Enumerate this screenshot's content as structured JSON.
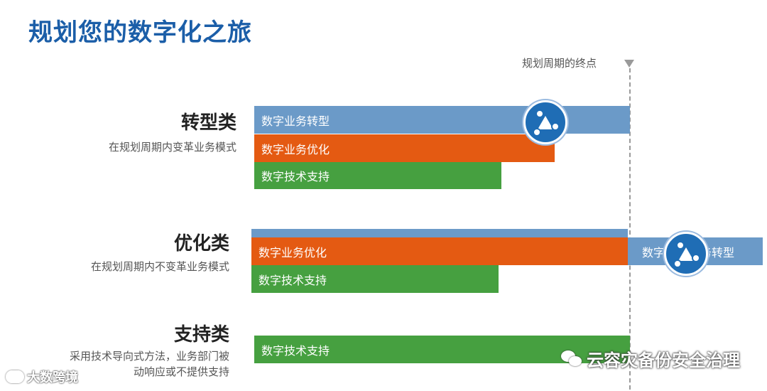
{
  "title": "规划您的数字化之旅",
  "horizon_label": "规划周期的终点",
  "groups": {
    "transform": {
      "title": "转型类",
      "desc": "在规划周期内变革业务模式",
      "bars": [
        "数字业务转型",
        "数字业务优化",
        "数字技术支持"
      ]
    },
    "optimize": {
      "title": "优化类",
      "desc": "在规划周期内不变革业务模式",
      "bars": [
        "数字业务优化",
        "数字技术支持"
      ],
      "overflow_bar_left": "数字",
      "overflow_bar_right": "务转型"
    },
    "support": {
      "title": "支持类",
      "desc_line1": "采用技术导向式方法，业务部门被",
      "desc_line2": "动响应或不提供支持",
      "bars": [
        "数字技术支持"
      ]
    }
  },
  "watermarks": {
    "brand": "云容灾备份安全治理",
    "corner": "大数跨境"
  },
  "colors": {
    "title": "#1b5ea8",
    "blue": "#6b9ac8",
    "orange": "#e45a12",
    "green": "#46a040",
    "badge": "#1f6db5"
  }
}
